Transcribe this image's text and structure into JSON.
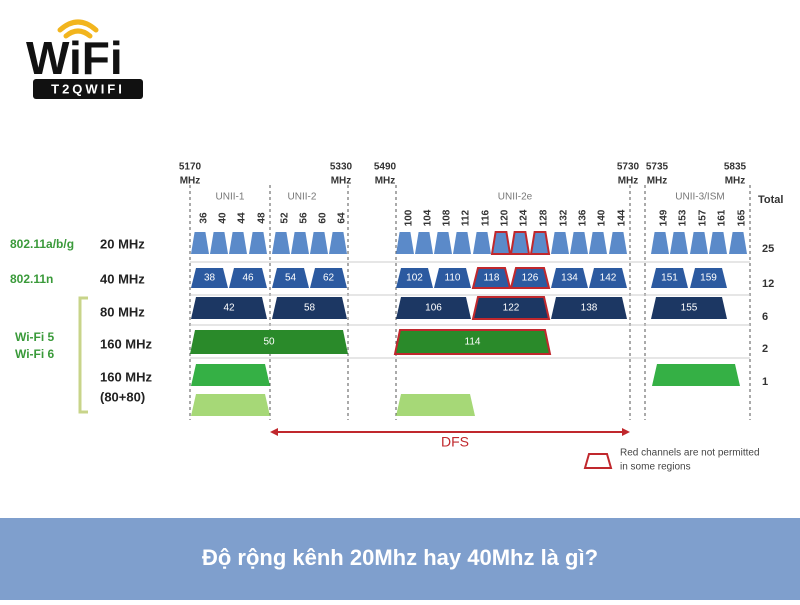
{
  "logo": {
    "word": "WiFi",
    "sub": "T2QWIFI"
  },
  "freq_unit": "MHz",
  "freqs": [
    "5170",
    "5330",
    "5490",
    "5730",
    "5735",
    "5835"
  ],
  "bands": [
    "UNII-1",
    "UNII-2",
    "UNII-2e",
    "UNII-3/ISM"
  ],
  "total_header": "Total",
  "channels": [
    36,
    40,
    44,
    48,
    52,
    56,
    60,
    64,
    100,
    104,
    108,
    112,
    116,
    120,
    124,
    128,
    132,
    136,
    140,
    144,
    149,
    153,
    157,
    161,
    165
  ],
  "standards": [
    "802.11a/b/g",
    "802.11n",
    "Wi-Fi 5",
    "Wi-Fi 6"
  ],
  "rows": [
    {
      "label": "20 MHz",
      "total": 25
    },
    {
      "label": "40 MHz",
      "total": 12
    },
    {
      "label": "80 MHz",
      "total": 6
    },
    {
      "label": "160 MHz",
      "total": 2
    },
    {
      "label": "160 MHz",
      "label2": "(80+80)",
      "total": 1
    }
  ],
  "channels_40": [
    38,
    46,
    54,
    62,
    102,
    110,
    118,
    126,
    134,
    142,
    151,
    159
  ],
  "channels_80": [
    42,
    58,
    106,
    122,
    138,
    155
  ],
  "channels_160": [
    50,
    114
  ],
  "dfs": "DFS",
  "legend": [
    "Red channels are not permitted",
    "in some regions"
  ],
  "footer": {
    "title": "Độ rộng kênh 20Mhz hay 40Mhz là gì?"
  }
}
